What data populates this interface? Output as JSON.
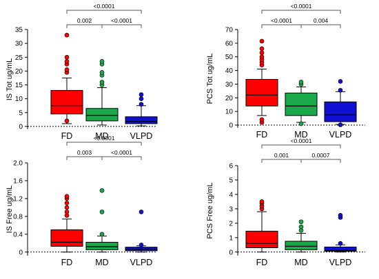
{
  "colors": {
    "FD": "#ff0000",
    "MD": "#19a84a",
    "VLPD": "#1010d0"
  },
  "chart_data": [
    {
      "type": "box",
      "ylabel": "IS Tot ug/mL",
      "ylim": [
        -1,
        35
      ],
      "yticks": [
        0,
        5,
        10,
        15,
        20,
        25,
        30,
        35
      ],
      "tick_labels": [
        "0",
        "5",
        "10",
        "15",
        "20",
        "25",
        "30",
        "35"
      ],
      "categories": [
        "FD",
        "MD",
        "VLPD"
      ],
      "boxes": [
        {
          "group": "FD",
          "whisker_low": 1.0,
          "q1": 4.5,
          "median": 7.5,
          "q3": 13.0,
          "whisker_high": 17.5,
          "outliers": [
            19.5,
            20.5,
            22.5,
            23.5,
            25.0,
            33.0,
            2.0
          ]
        },
        {
          "group": "MD",
          "whisker_low": 0.5,
          "q1": 2.0,
          "median": 4.0,
          "q3": 6.5,
          "whisker_high": 14.0,
          "outliers": [
            15.0,
            16.0,
            18.5,
            19.5,
            22.5,
            23.5
          ]
        },
        {
          "group": "VLPD",
          "whisker_low": 0.2,
          "q1": 1.0,
          "median": 1.8,
          "q3": 3.5,
          "whisker_high": 7.5,
          "outliers": [
            8.0,
            10.0,
            11.5
          ]
        }
      ],
      "brackets": [
        {
          "from": "FD",
          "to": "VLPD",
          "label": "<0.0001",
          "level": 2
        },
        {
          "from": "FD",
          "to": "MD",
          "label": "0.002",
          "level": 1
        },
        {
          "from": "MD",
          "to": "VLPD",
          "label": "<0.0001",
          "level": 1
        }
      ]
    },
    {
      "type": "box",
      "ylabel": "PCS Tot ug/mL",
      "ylim": [
        -2,
        70
      ],
      "yticks": [
        0,
        10,
        20,
        30,
        40,
        50,
        60,
        70
      ],
      "tick_labels": [
        "0",
        "10",
        "20",
        "30",
        "40",
        "50",
        "60",
        "70"
      ],
      "categories": [
        "FD",
        "MD",
        "VLPD"
      ],
      "boxes": [
        {
          "group": "FD",
          "whisker_low": 7.0,
          "q1": 14.0,
          "median": 22.0,
          "q3": 33.5,
          "whisker_high": 41.0,
          "outliers": [
            44.0,
            46.0,
            48.0,
            50.0,
            53.0,
            56.0,
            61.5,
            2.0,
            4.0
          ]
        },
        {
          "group": "MD",
          "whisker_low": 2.0,
          "q1": 7.0,
          "median": 14.0,
          "q3": 23.5,
          "whisker_high": 28.0,
          "outliers": [
            30.0,
            31.5,
            1.0
          ]
        },
        {
          "group": "VLPD",
          "whisker_low": 0.5,
          "q1": 2.5,
          "median": 7.5,
          "q3": 17.0,
          "whisker_high": 24.5,
          "outliers": [
            25.5,
            32.0,
            0.2
          ]
        }
      ],
      "brackets": [
        {
          "from": "FD",
          "to": "VLPD",
          "label": "<0.0001",
          "level": 2
        },
        {
          "from": "FD",
          "to": "MD",
          "label": "<0.0001",
          "level": 1
        },
        {
          "from": "MD",
          "to": "VLPD",
          "label": "0.004",
          "level": 1
        }
      ]
    },
    {
      "type": "box",
      "ylabel": "IS Free ug/mL",
      "ylim": [
        -0.08,
        2.0
      ],
      "yticks": [
        0,
        0.4,
        0.8,
        1.2,
        1.6,
        2.0
      ],
      "tick_labels": [
        "0",
        "0.4",
        "0.8",
        "1.2",
        "1.6",
        "2.0"
      ],
      "categories": [
        "FD",
        "MD",
        "VLPD"
      ],
      "boxes": [
        {
          "group": "FD",
          "whisker_low": 0.0,
          "q1": 0.13,
          "median": 0.22,
          "q3": 0.5,
          "whisker_high": 0.74,
          "outliers": [
            0.82,
            0.9,
            1.0,
            1.1,
            1.2,
            1.25
          ]
        },
        {
          "group": "MD",
          "whisker_low": 0.0,
          "q1": 0.05,
          "median": 0.12,
          "q3": 0.22,
          "whisker_high": 0.36,
          "outliers": [
            0.4,
            0.9,
            1.38
          ]
        },
        {
          "group": "VLPD",
          "whisker_low": 0.0,
          "q1": 0.03,
          "median": 0.06,
          "q3": 0.11,
          "whisker_high": 0.14,
          "outliers": [
            0.16,
            0.9
          ]
        }
      ],
      "brackets": [
        {
          "from": "FD",
          "to": "VLPD",
          "label": "<0.0001",
          "level": 2
        },
        {
          "from": "FD",
          "to": "MD",
          "label": "0.003",
          "level": 1
        },
        {
          "from": "MD",
          "to": "VLPD",
          "label": "<0.0001",
          "level": 1
        }
      ]
    },
    {
      "type": "box",
      "ylabel": "PCS Free ug/mL",
      "ylim": [
        -0.25,
        6
      ],
      "yticks": [
        0,
        1,
        2,
        3,
        4,
        5,
        6
      ],
      "tick_labels": [
        "0",
        "1",
        "2",
        "3",
        "4",
        "5",
        "6"
      ],
      "categories": [
        "FD",
        "MD",
        "VLPD"
      ],
      "boxes": [
        {
          "group": "FD",
          "whisker_low": 0.0,
          "q1": 0.3,
          "median": 0.6,
          "q3": 1.45,
          "whisker_high": 2.8,
          "outliers": [
            3.0,
            3.2,
            3.4,
            3.5
          ]
        },
        {
          "group": "MD",
          "whisker_low": 0.0,
          "q1": 0.15,
          "median": 0.4,
          "q3": 0.75,
          "whisker_high": 1.3,
          "outliers": [
            1.5,
            1.75,
            2.1
          ]
        },
        {
          "group": "VLPD",
          "whisker_low": 0.0,
          "q1": 0.05,
          "median": 0.12,
          "q3": 0.35,
          "whisker_high": 0.5,
          "outliers": [
            0.6,
            2.4,
            2.55
          ]
        }
      ],
      "brackets": [
        {
          "from": "FD",
          "to": "VLPD",
          "label": "<0.0001",
          "level": 2
        },
        {
          "from": "FD",
          "to": "MD",
          "label": "0.001",
          "level": 1
        },
        {
          "from": "MD",
          "to": "VLPD",
          "label": "0.0007",
          "level": 1
        }
      ]
    }
  ]
}
